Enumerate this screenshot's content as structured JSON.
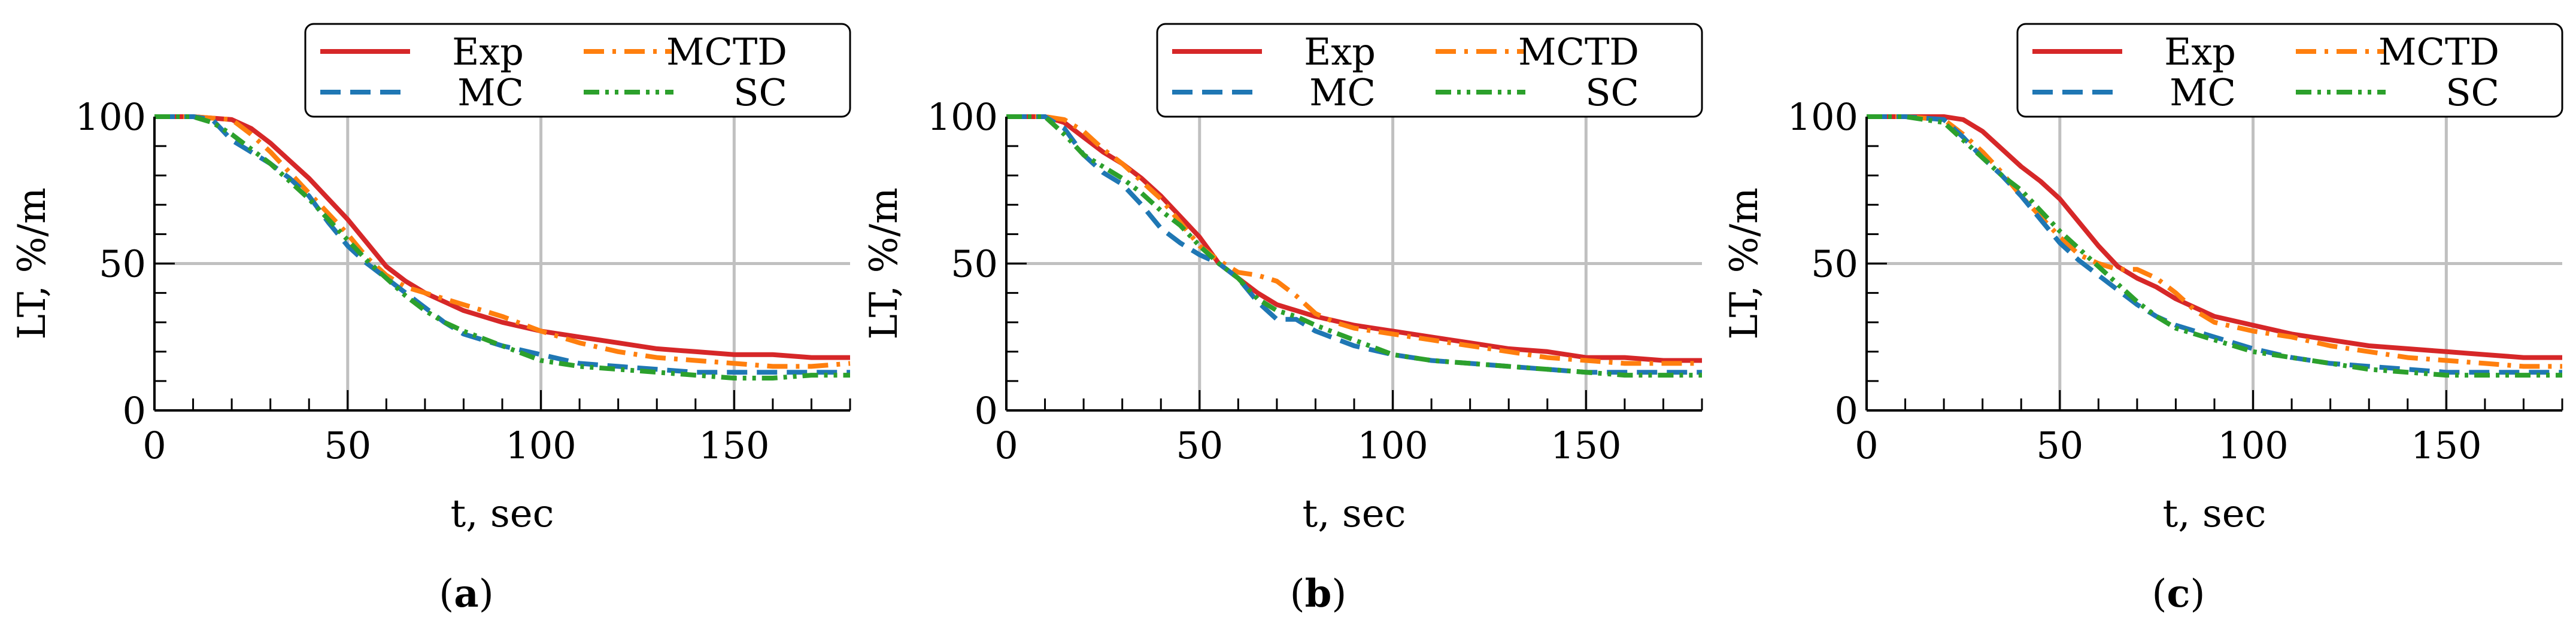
{
  "legend": {
    "entries": [
      {
        "key": "exp",
        "label": "Exp",
        "color": "#d62728",
        "dash": "solid"
      },
      {
        "key": "mctd",
        "label": "MCTD",
        "color": "#ff7f0e",
        "dash": "dashdot"
      },
      {
        "key": "mc",
        "label": "MC",
        "color": "#1f77b4",
        "dash": "dashed"
      },
      {
        "key": "sc",
        "label": "SC",
        "color": "#2ca02c",
        "dash": "dashdotdot"
      }
    ]
  },
  "chart_data": [
    {
      "type": "line",
      "panel_label": "a",
      "xlabel": "t, sec",
      "ylabel": "LT, %/m",
      "xlim": [
        0,
        180
      ],
      "ylim": [
        0,
        100
      ],
      "xticks": [
        "0",
        "50",
        "100",
        "150"
      ],
      "yticks": [
        "0",
        "50",
        "100"
      ],
      "grid": true,
      "legend_position": "top",
      "series": [
        {
          "name": "Exp",
          "x": [
            0,
            10,
            20,
            25,
            30,
            35,
            40,
            45,
            50,
            55,
            60,
            65,
            70,
            75,
            80,
            90,
            100,
            110,
            120,
            130,
            140,
            150,
            160,
            170,
            180
          ],
          "y": [
            100,
            100,
            99,
            96,
            91,
            85,
            79,
            72,
            65,
            57,
            49,
            44,
            40,
            37,
            34,
            30,
            27,
            25,
            23,
            21,
            20,
            19,
            19,
            18,
            18
          ]
        },
        {
          "name": "MCTD",
          "x": [
            0,
            10,
            20,
            25,
            30,
            35,
            40,
            45,
            50,
            55,
            60,
            65,
            70,
            75,
            80,
            90,
            100,
            110,
            120,
            130,
            140,
            150,
            160,
            170,
            180
          ],
          "y": [
            100,
            100,
            99,
            94,
            88,
            81,
            74,
            67,
            60,
            52,
            46,
            42,
            40,
            38,
            36,
            32,
            27,
            23,
            20,
            18,
            17,
            16,
            15,
            15,
            16
          ]
        },
        {
          "name": "MC",
          "x": [
            0,
            10,
            15,
            20,
            25,
            30,
            35,
            40,
            45,
            50,
            55,
            60,
            65,
            70,
            75,
            80,
            90,
            100,
            110,
            120,
            130,
            140,
            150,
            160,
            170,
            180
          ],
          "y": [
            100,
            100,
            99,
            92,
            88,
            84,
            79,
            73,
            64,
            56,
            50,
            45,
            40,
            35,
            30,
            26,
            22,
            19,
            16,
            15,
            14,
            13,
            13,
            13,
            13,
            13
          ]
        },
        {
          "name": "SC",
          "x": [
            0,
            10,
            15,
            20,
            25,
            30,
            35,
            40,
            45,
            50,
            55,
            60,
            65,
            70,
            75,
            80,
            90,
            100,
            110,
            120,
            130,
            140,
            150,
            160,
            170,
            180
          ],
          "y": [
            100,
            100,
            98,
            94,
            89,
            84,
            78,
            72,
            65,
            58,
            51,
            45,
            39,
            34,
            30,
            27,
            22,
            17,
            15,
            14,
            13,
            12,
            11,
            11,
            12,
            12
          ]
        }
      ]
    },
    {
      "type": "line",
      "panel_label": "b",
      "xlabel": "t, sec",
      "ylabel": "LT, %/m",
      "xlim": [
        0,
        180
      ],
      "ylim": [
        0,
        100
      ],
      "xticks": [
        "0",
        "50",
        "100",
        "150"
      ],
      "yticks": [
        "0",
        "50",
        "100"
      ],
      "grid": true,
      "legend_position": "top",
      "series": [
        {
          "name": "Exp",
          "x": [
            0,
            10,
            15,
            20,
            25,
            30,
            35,
            40,
            45,
            50,
            55,
            60,
            65,
            70,
            75,
            80,
            90,
            100,
            110,
            120,
            130,
            140,
            150,
            160,
            170,
            180
          ],
          "y": [
            100,
            100,
            98,
            93,
            88,
            84,
            79,
            73,
            66,
            59,
            50,
            45,
            40,
            36,
            34,
            32,
            29,
            27,
            25,
            23,
            21,
            20,
            18,
            18,
            17,
            17
          ]
        },
        {
          "name": "MCTD",
          "x": [
            0,
            10,
            15,
            20,
            25,
            30,
            35,
            40,
            45,
            50,
            55,
            60,
            65,
            70,
            75,
            80,
            85,
            90,
            100,
            110,
            120,
            130,
            140,
            150,
            160,
            170,
            180
          ],
          "y": [
            100,
            100,
            99,
            95,
            89,
            84,
            78,
            72,
            64,
            56,
            51,
            47,
            46,
            44,
            39,
            33,
            30,
            28,
            26,
            24,
            22,
            20,
            18,
            17,
            16,
            16,
            16
          ]
        },
        {
          "name": "MC",
          "x": [
            0,
            10,
            15,
            20,
            25,
            30,
            35,
            40,
            45,
            50,
            55,
            60,
            65,
            70,
            75,
            80,
            90,
            100,
            110,
            120,
            130,
            140,
            150,
            160,
            170,
            180
          ],
          "y": [
            100,
            100,
            96,
            87,
            81,
            77,
            70,
            62,
            57,
            53,
            50,
            45,
            37,
            31,
            31,
            27,
            22,
            19,
            17,
            16,
            15,
            14,
            13,
            13,
            13,
            13
          ]
        },
        {
          "name": "SC",
          "x": [
            0,
            10,
            15,
            20,
            25,
            30,
            35,
            40,
            45,
            50,
            55,
            60,
            65,
            70,
            75,
            80,
            90,
            100,
            110,
            120,
            130,
            140,
            150,
            160,
            170,
            180
          ],
          "y": [
            100,
            100,
            94,
            87,
            83,
            79,
            74,
            68,
            63,
            56,
            50,
            45,
            38,
            34,
            32,
            29,
            24,
            19,
            17,
            16,
            15,
            14,
            13,
            12,
            12,
            12
          ]
        }
      ]
    },
    {
      "type": "line",
      "panel_label": "c",
      "xlabel": "t, sec",
      "ylabel": "LT, %/m",
      "xlim": [
        0,
        180
      ],
      "ylim": [
        0,
        100
      ],
      "xticks": [
        "0",
        "50",
        "100",
        "150"
      ],
      "yticks": [
        "0",
        "50",
        "100"
      ],
      "grid": true,
      "legend_position": "top",
      "series": [
        {
          "name": "Exp",
          "x": [
            0,
            10,
            20,
            25,
            30,
            35,
            40,
            45,
            50,
            55,
            60,
            65,
            70,
            75,
            80,
            90,
            100,
            110,
            120,
            130,
            140,
            150,
            160,
            170,
            180
          ],
          "y": [
            100,
            100,
            100,
            99,
            95,
            89,
            83,
            78,
            72,
            64,
            56,
            49,
            45,
            42,
            38,
            32,
            29,
            26,
            24,
            22,
            21,
            20,
            19,
            18,
            18
          ]
        },
        {
          "name": "MCTD",
          "x": [
            0,
            10,
            20,
            25,
            30,
            35,
            40,
            45,
            50,
            55,
            60,
            65,
            70,
            75,
            80,
            85,
            90,
            100,
            110,
            120,
            130,
            140,
            150,
            160,
            170,
            180
          ],
          "y": [
            100,
            100,
            99,
            94,
            88,
            81,
            73,
            66,
            59,
            53,
            50,
            48,
            48,
            45,
            40,
            34,
            30,
            27,
            25,
            22,
            20,
            18,
            17,
            16,
            15,
            15
          ]
        },
        {
          "name": "MC",
          "x": [
            0,
            10,
            20,
            25,
            30,
            35,
            40,
            45,
            50,
            55,
            60,
            65,
            70,
            75,
            80,
            90,
            100,
            110,
            120,
            130,
            140,
            150,
            160,
            170,
            180
          ],
          "y": [
            100,
            100,
            99,
            93,
            86,
            80,
            73,
            65,
            57,
            51,
            46,
            41,
            36,
            32,
            29,
            25,
            21,
            18,
            16,
            15,
            14,
            13,
            13,
            13,
            13
          ]
        },
        {
          "name": "SC",
          "x": [
            0,
            10,
            20,
            25,
            30,
            35,
            40,
            45,
            50,
            55,
            60,
            65,
            70,
            75,
            80,
            90,
            100,
            110,
            120,
            130,
            140,
            150,
            160,
            170,
            180
          ],
          "y": [
            100,
            100,
            98,
            92,
            86,
            80,
            75,
            68,
            61,
            55,
            49,
            43,
            37,
            32,
            28,
            24,
            20,
            18,
            16,
            14,
            13,
            12,
            12,
            12,
            12
          ]
        }
      ]
    }
  ]
}
